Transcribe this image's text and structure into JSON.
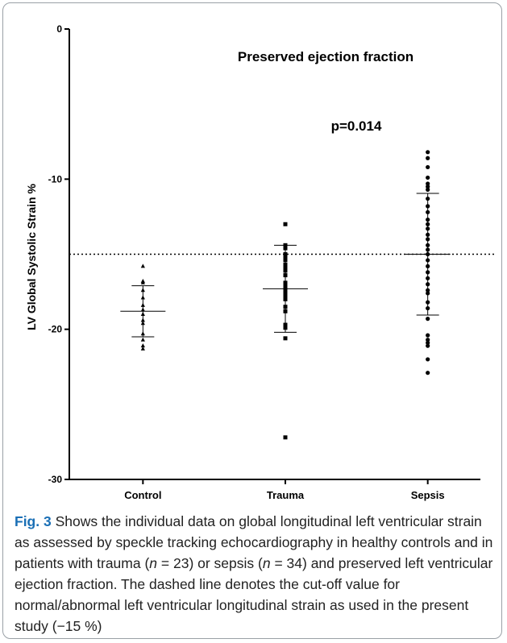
{
  "chart_data": {
    "type": "dot",
    "title": "Preserved ejection fraction",
    "annotation": "p=0.014",
    "y_label": "LV Global Systolic Strain %",
    "categories": [
      "Control",
      "Trauma",
      "Sepsis"
    ],
    "markers": [
      "triangle",
      "square",
      "circle"
    ],
    "color": "#000000",
    "values": [
      [
        -15.8,
        -16.8,
        -16.9,
        -17.4,
        -17.9,
        -18.4,
        -18.7,
        -19.0,
        -19.4,
        -19.6,
        -20.3,
        -20.7,
        -21.1,
        -21.3
      ],
      [
        -13.0,
        -14.4,
        -14.6,
        -15.0,
        -15.2,
        -15.4,
        -15.7,
        -15.9,
        -16.1,
        -16.4,
        -16.9,
        -17.1,
        -17.3,
        -17.5,
        -17.7,
        -17.8,
        -18.0,
        -18.5,
        -18.8,
        -19.7,
        -19.9,
        -20.6,
        -27.2
      ],
      [
        -8.2,
        -8.6,
        -9.2,
        -9.9,
        -10.3,
        -10.5,
        -10.7,
        -11.3,
        -11.8,
        -12.2,
        -12.7,
        -13.0,
        -13.3,
        -13.7,
        -14.0,
        -14.4,
        -14.7,
        -15.0,
        -15.4,
        -15.8,
        -16.2,
        -16.6,
        -17.0,
        -17.4,
        -17.6,
        -18.2,
        -18.6,
        -19.3,
        -20.4,
        -20.7,
        -20.9,
        -21.1,
        -22.0,
        -22.9
      ]
    ],
    "mean": [
      -18.8,
      -17.3,
      -15.0
    ],
    "sd": [
      1.7,
      2.9,
      4.05
    ],
    "reference_line": -15,
    "ylim": [
      -30,
      0
    ],
    "yticks": [
      0,
      -10,
      -20,
      -30
    ]
  },
  "caption": {
    "label": "Fig. 3",
    "parts": [
      "Shows the individual data on global longitudinal left ventricular strain as assessed by speckle tracking echocardiography in healthy controls and in patients with trauma (",
      "n",
      " = 23) or sepsis (",
      "n",
      " = 34) and preserved left ventricular ejection fraction. The dashed line denotes the cut-off value for normal/abnormal left ventricular longitudinal strain as used in the present study (−15 %)"
    ]
  }
}
